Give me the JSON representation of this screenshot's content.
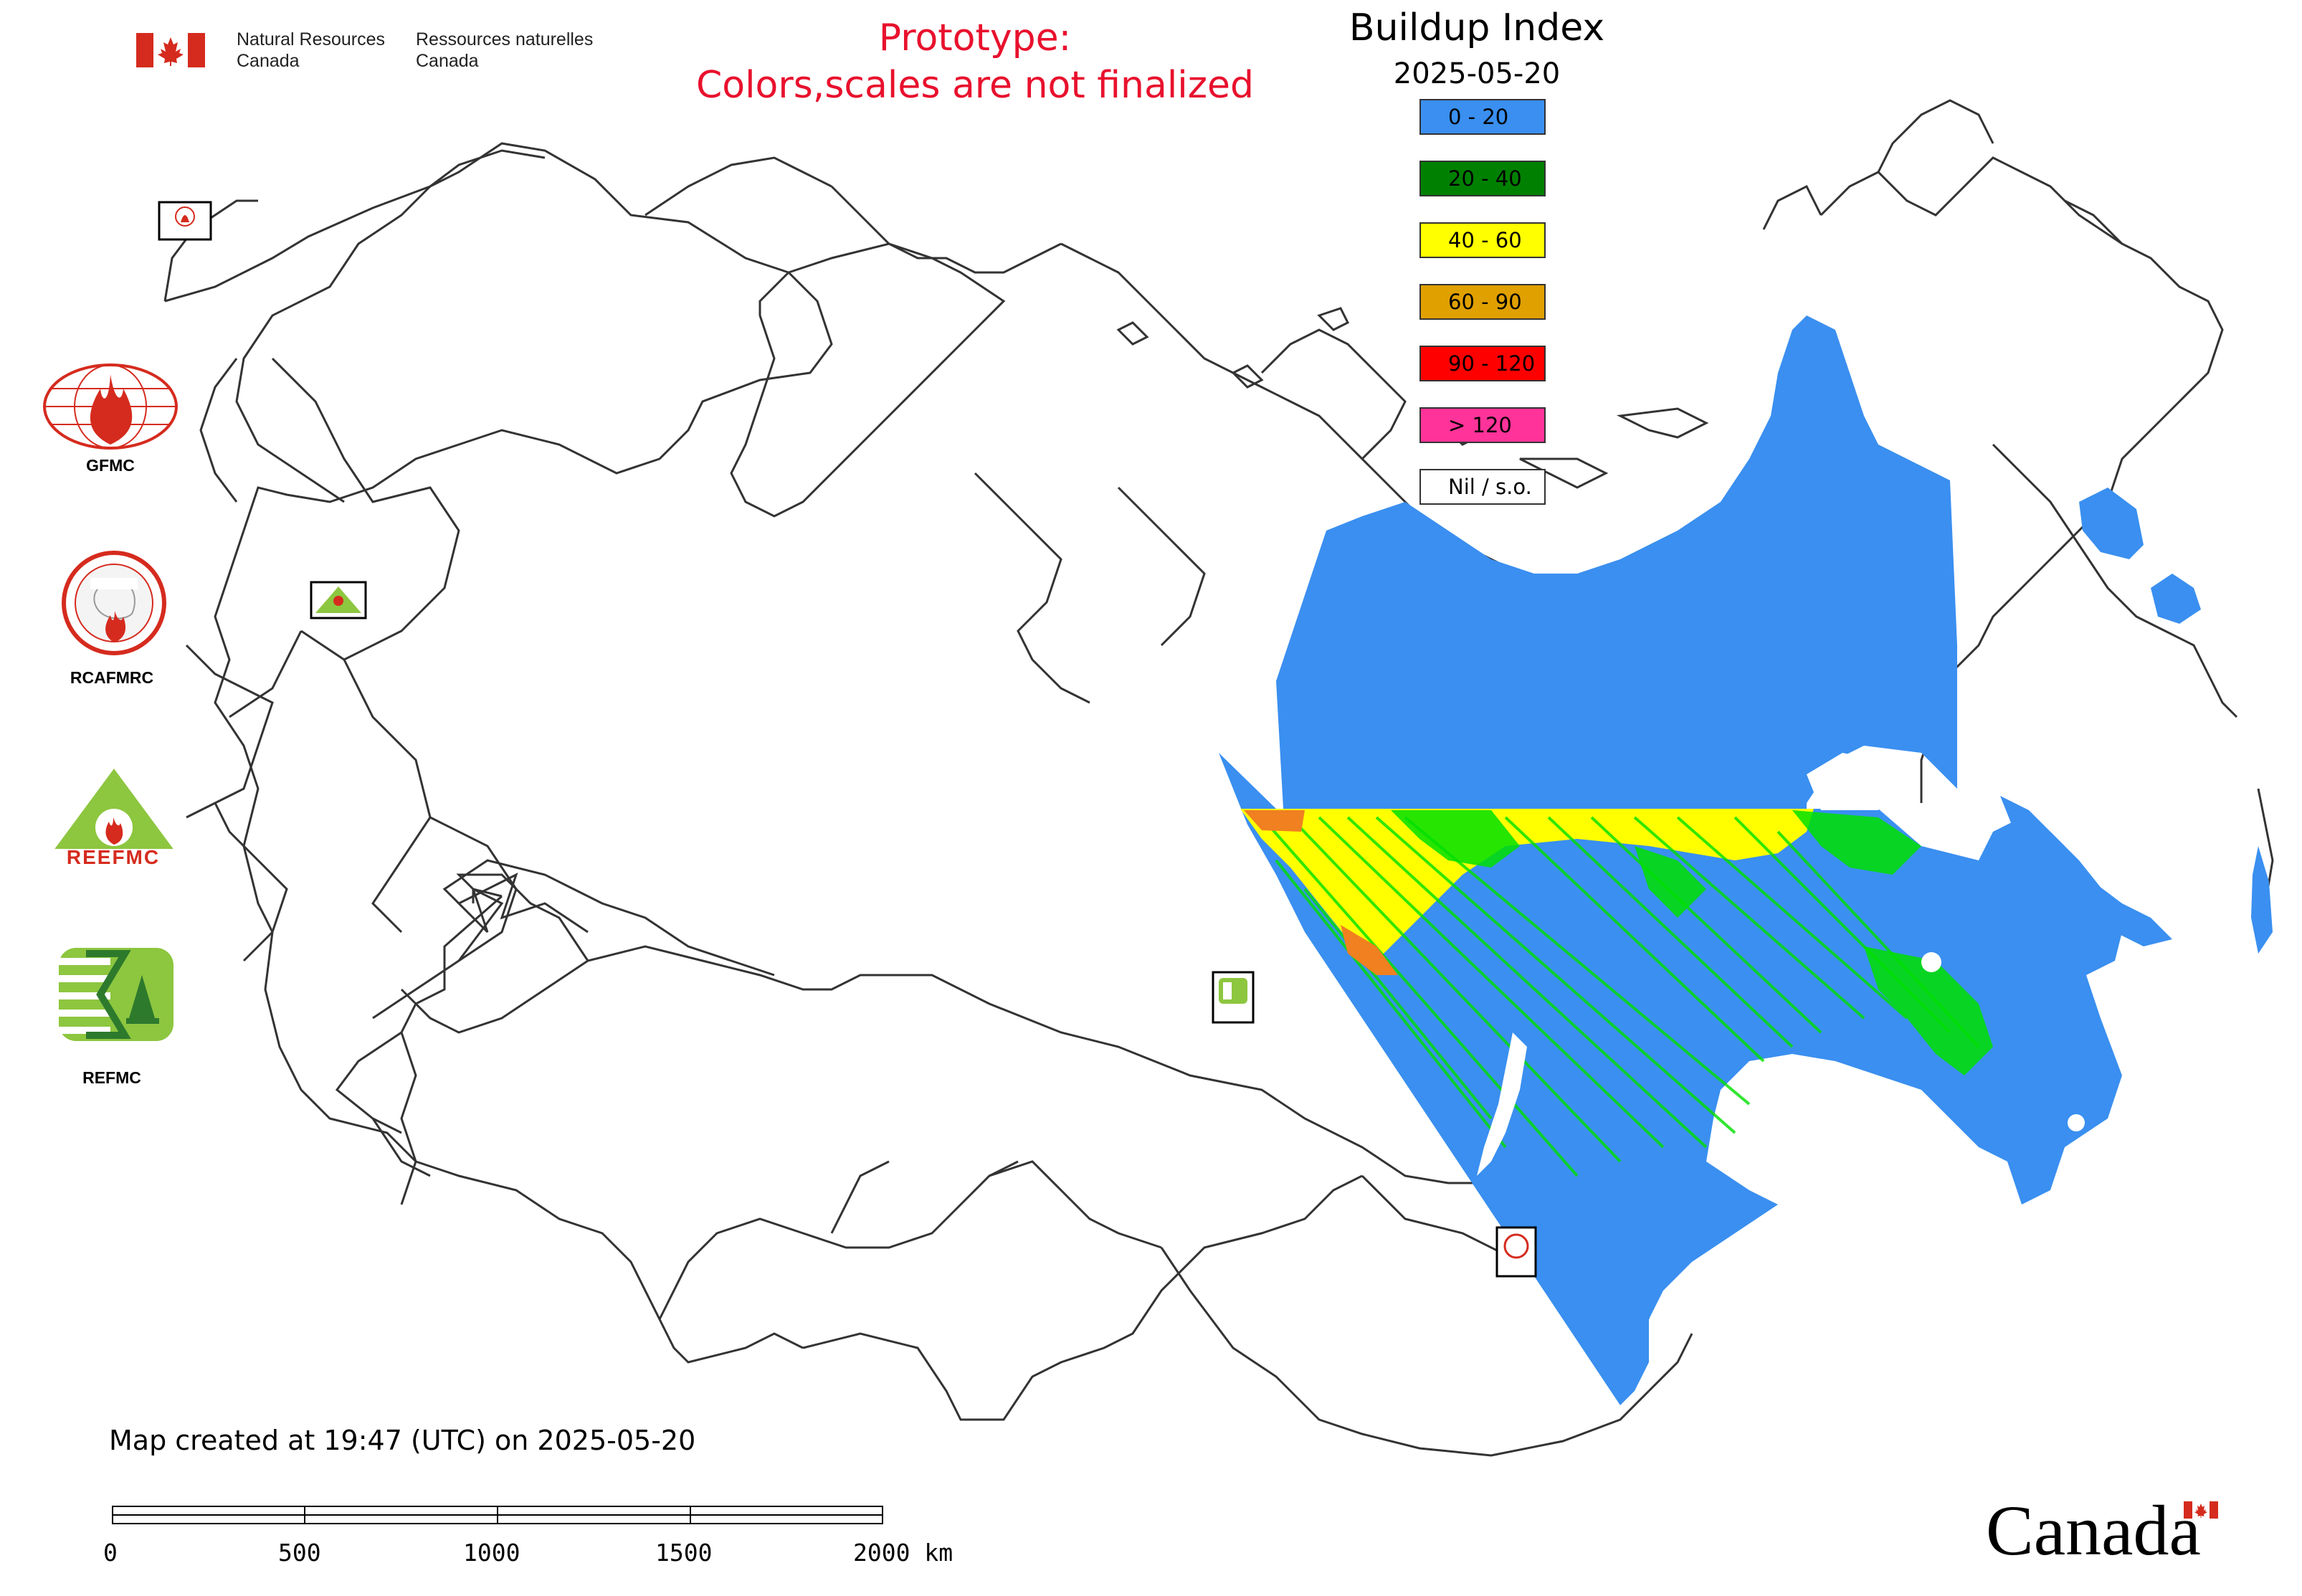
{
  "header": {
    "gov_en_line1": "Natural Resources",
    "gov_en_line2": "Canada",
    "gov_fr_line1": "Ressources naturelles",
    "gov_fr_line2": "Canada",
    "notice_line1": "Prototype:",
    "notice_line2": "Colors,scales are not finalized"
  },
  "legend": {
    "title": "Buildup Index",
    "date": "2025-05-20",
    "items": [
      {
        "label": "0 - 20",
        "color": "#3a8ff0"
      },
      {
        "label": "20 - 40",
        "color": "#008000"
      },
      {
        "label": "40 - 60",
        "color": "#ffff00"
      },
      {
        "label": "60 - 90",
        "color": "#e0a000"
      },
      {
        "label": "90 - 120",
        "color": "#ff0000"
      },
      {
        "label": "> 120",
        "color": "#ff3399"
      },
      {
        "label": "Nil / s.o.",
        "color": "#ffffff"
      }
    ]
  },
  "logos": {
    "gfmc": "GFMC",
    "rcafmrc": "RCAFMRC",
    "reefmc": "REEFMC",
    "refmc": "REFMC",
    "map_gfmc": "GFMC",
    "map_rcafmrc": "RCAFMRC",
    "map_reefmc": "REEFMC",
    "map_refmc": "REFMC"
  },
  "footer": {
    "created_note": "Map created at 19:47 (UTC) on 2025-05-20",
    "scale_labels": [
      "0",
      "500",
      "1000",
      "1500",
      "2000 km"
    ],
    "wordmark": "Canada"
  },
  "colors": {
    "flag_red": "#d52b1e",
    "notice_red": "#e8112d",
    "bui_low": "#3a8ff0",
    "bui_moderate": "#00e000",
    "bui_high": "#ffff00",
    "bui_very_high": "#f08020"
  }
}
